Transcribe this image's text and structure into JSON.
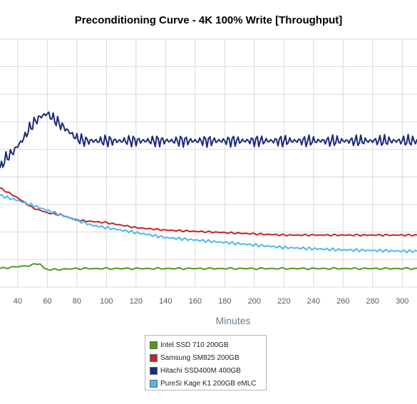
{
  "chart_data": {
    "type": "line",
    "title": "Preconditioning Curve - 4K 100% Write [Throughput]",
    "xlabel": "Minutes",
    "ylabel": "",
    "x_ticks": [
      40,
      60,
      80,
      100,
      120,
      140,
      160,
      180,
      200,
      220,
      240,
      260,
      280,
      300
    ],
    "xlim": [
      28,
      310
    ],
    "ylim": [
      0,
      100
    ],
    "grid": true,
    "legend_position": "bottom-center",
    "series": [
      {
        "name": "Intel SSD 710 200GB",
        "color": "#4c9b1e",
        "points": [
          [
            28,
            7.5
          ],
          [
            35,
            8
          ],
          [
            45,
            8.5
          ],
          [
            55,
            9.5
          ],
          [
            58,
            7.5
          ],
          [
            62,
            7
          ],
          [
            80,
            7.5
          ],
          [
            120,
            7.5
          ],
          [
            180,
            7.5
          ],
          [
            240,
            7.5
          ],
          [
            300,
            7.5
          ],
          [
            310,
            7.5
          ]
        ]
      },
      {
        "name": "Samsung SM825 200GB",
        "color": "#c0262a",
        "points": [
          [
            28,
            40
          ],
          [
            40,
            36
          ],
          [
            50,
            32
          ],
          [
            60,
            30
          ],
          [
            70,
            29
          ],
          [
            80,
            27
          ],
          [
            100,
            26
          ],
          [
            120,
            24
          ],
          [
            140,
            23
          ],
          [
            160,
            22.5
          ],
          [
            180,
            22
          ],
          [
            200,
            21.5
          ],
          [
            220,
            21
          ],
          [
            240,
            21
          ],
          [
            260,
            21
          ],
          [
            280,
            21
          ],
          [
            300,
            21
          ],
          [
            310,
            21
          ]
        ]
      },
      {
        "name": "Hitachi SSD400M 400GB",
        "color": "#1a2a7c",
        "points": [
          [
            28,
            48
          ],
          [
            32,
            52
          ],
          [
            36,
            54
          ],
          [
            40,
            57
          ],
          [
            44,
            60
          ],
          [
            48,
            64
          ],
          [
            52,
            67
          ],
          [
            56,
            69
          ],
          [
            60,
            70
          ],
          [
            64,
            68
          ],
          [
            68,
            66
          ],
          [
            72,
            64
          ],
          [
            76,
            62
          ],
          [
            80,
            60
          ],
          [
            85,
            59
          ],
          [
            90,
            59
          ],
          [
            100,
            59
          ],
          [
            120,
            59
          ],
          [
            160,
            59
          ],
          [
            200,
            59
          ],
          [
            240,
            59
          ],
          [
            280,
            59
          ],
          [
            310,
            59
          ]
        ]
      },
      {
        "name": "PureSi Kage K1 200GB eMLC",
        "color": "#4db8ee",
        "points": [
          [
            28,
            37
          ],
          [
            40,
            35
          ],
          [
            50,
            33
          ],
          [
            60,
            31
          ],
          [
            70,
            29
          ],
          [
            80,
            27
          ],
          [
            90,
            25
          ],
          [
            100,
            24
          ],
          [
            120,
            22
          ],
          [
            140,
            20
          ],
          [
            160,
            19
          ],
          [
            180,
            18
          ],
          [
            200,
            17
          ],
          [
            220,
            16
          ],
          [
            240,
            15.5
          ],
          [
            260,
            15
          ],
          [
            280,
            14.8
          ],
          [
            300,
            14.5
          ],
          [
            310,
            14.5
          ]
        ]
      }
    ]
  }
}
